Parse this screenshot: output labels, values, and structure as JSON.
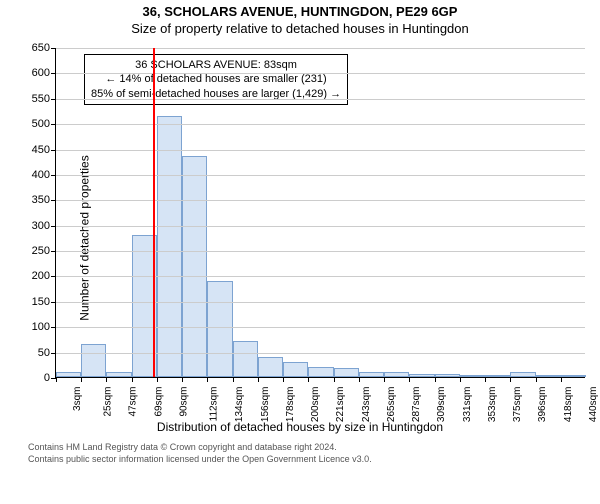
{
  "title_line1": "36, SCHOLARS AVENUE, HUNTINGDON, PE29 6GP",
  "title_line2": "Size of property relative to detached houses in Huntingdon",
  "chart": {
    "type": "histogram",
    "ylabel": "Number of detached properties",
    "xlabel": "Distribution of detached houses by size in Huntingdon",
    "ylim": [
      0,
      650
    ],
    "ytick_step": 50,
    "xticks": [
      "3sqm",
      "25sqm",
      "47sqm",
      "69sqm",
      "90sqm",
      "112sqm",
      "134sqm",
      "156sqm",
      "178sqm",
      "200sqm",
      "221sqm",
      "243sqm",
      "265sqm",
      "287sqm",
      "309sqm",
      "331sqm",
      "353sqm",
      "375sqm",
      "396sqm",
      "418sqm",
      "440sqm"
    ],
    "bars": [
      10,
      65,
      10,
      280,
      515,
      435,
      190,
      70,
      40,
      30,
      20,
      18,
      10,
      10,
      5,
      5,
      2,
      2,
      10,
      2,
      2
    ],
    "bar_fill": "#d6e4f5",
    "bar_border": "#7da3d1",
    "background_color": "#ffffff",
    "grid_color": "#cccccc",
    "marker_color": "#ff0000",
    "marker_at_sqm": 83,
    "x_range_sqm": [
      3,
      440
    ],
    "title_fontsize": 13,
    "label_fontsize": 12,
    "tick_fontsize": 11,
    "xtick_fontsize": 10
  },
  "infobox": {
    "line1": "36 SCHOLARS AVENUE: 83sqm",
    "line2": "← 14% of detached houses are smaller (231)",
    "line3": "85% of semi-detached houses are larger (1,429) →",
    "fontsize": 11
  },
  "footer": {
    "line1": "Contains HM Land Registry data © Crown copyright and database right 2024.",
    "line2": "Contains public sector information licensed under the Open Government Licence v3.0."
  }
}
